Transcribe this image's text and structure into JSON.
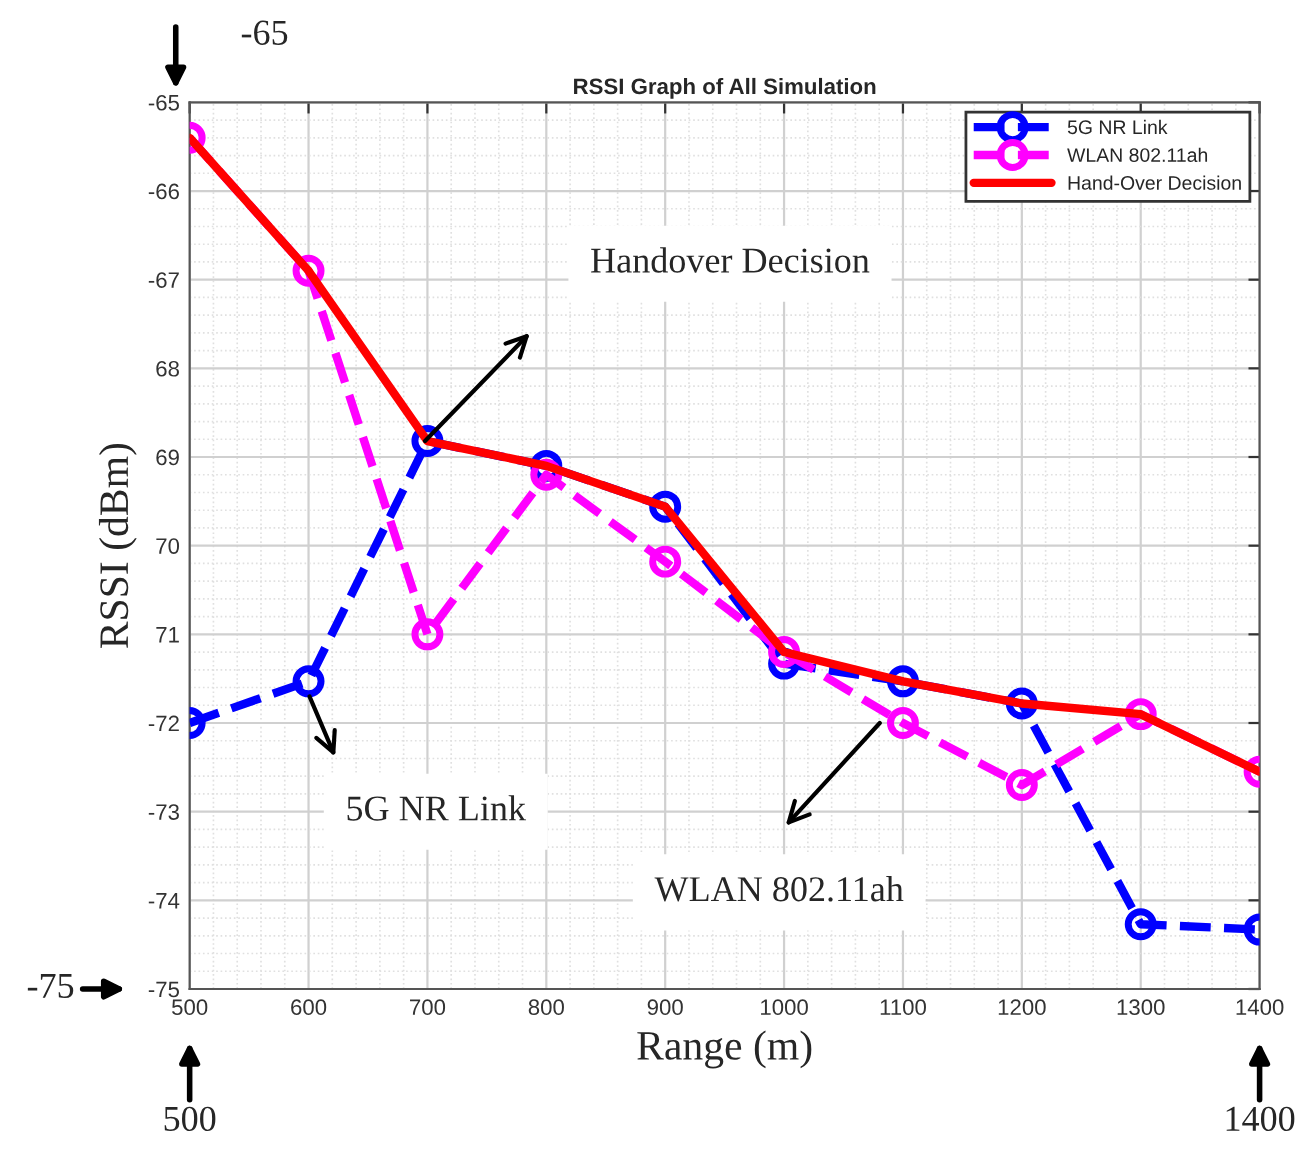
{
  "chart_data": {
    "type": "line",
    "title": "RSSI Graph of All Simulation",
    "xlabel": "Range (m)",
    "ylabel": "RSSI (dBm)",
    "x": [
      500,
      600,
      700,
      800,
      900,
      1000,
      1100,
      1200,
      1300,
      1400
    ],
    "series": [
      {
        "name": "5G NR Link",
        "color": "#0000ff",
        "marker": "circle",
        "line_style": "dashed",
        "values": [
          -72.0,
          -71.53,
          -68.82,
          -69.1,
          -69.56,
          -71.33,
          -71.53,
          -71.78,
          -74.27,
          -74.33
        ]
      },
      {
        "name": "WLAN 802.11ah",
        "color": "#ff00ff",
        "marker": "circle",
        "line_style": "dashed",
        "values": [
          -65.4,
          -66.9,
          -71.0,
          -69.2,
          -70.18,
          -71.2,
          -72.0,
          -72.7,
          -71.9,
          -72.55
        ]
      },
      {
        "name": "Hand-Over Decision",
        "color": "#ff0000",
        "marker": "none",
        "line_style": "solid",
        "values": [
          -65.4,
          -66.9,
          -68.82,
          -69.1,
          -69.56,
          -71.2,
          -71.53,
          -71.78,
          -71.9,
          -72.55
        ]
      }
    ],
    "xlim": [
      500,
      1400
    ],
    "xticks": [
      500,
      600,
      700,
      800,
      900,
      1000,
      1100,
      1200,
      1300,
      1400
    ],
    "ylim": [
      -75,
      -65
    ],
    "yticks": [
      -65,
      -66,
      -67,
      {
        "value": -68,
        "label": "68"
      },
      {
        "value": -69,
        "label": "69"
      },
      {
        "value": -70,
        "label": "70"
      },
      {
        "value": -71,
        "label": "71"
      },
      -72,
      -73,
      -74,
      -75
    ],
    "grid": true,
    "legend": "top right",
    "annotations": [
      "Handover Decision",
      "5G NR Link",
      "WLAN 802.11ah",
      "-65",
      "-75",
      "500",
      "1400"
    ]
  }
}
